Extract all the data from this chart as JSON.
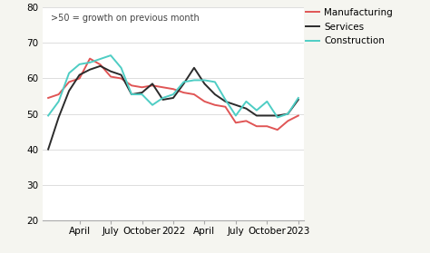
{
  "annotation": ">50 = growth on previous month",
  "ylim": [
    20,
    80
  ],
  "yticks": [
    20,
    30,
    40,
    50,
    60,
    70,
    80
  ],
  "xtick_labels": [
    "April",
    "July",
    "October",
    "2022",
    "April",
    "July",
    "October",
    "2023"
  ],
  "xtick_positions": [
    3,
    6,
    9,
    12,
    15,
    18,
    21,
    24
  ],
  "manufacturing": [
    54.5,
    55.5,
    59.0,
    60.0,
    65.6,
    63.9,
    60.5,
    60.0,
    58.0,
    57.5,
    58.0,
    57.5,
    57.0,
    56.0,
    55.5,
    53.5,
    52.5,
    52.0,
    47.5,
    48.0,
    46.5,
    46.5,
    45.5,
    48.0,
    49.5
  ],
  "services": [
    40.0,
    49.0,
    56.5,
    61.0,
    62.5,
    63.5,
    62.0,
    61.0,
    55.5,
    56.0,
    58.5,
    54.0,
    54.5,
    58.5,
    63.0,
    58.5,
    55.5,
    53.5,
    52.5,
    51.5,
    49.5,
    49.5,
    49.5,
    50.0,
    54.0
  ],
  "construction": [
    49.5,
    53.5,
    61.5,
    64.0,
    64.5,
    65.5,
    66.5,
    63.0,
    55.5,
    55.5,
    52.5,
    54.5,
    55.5,
    59.0,
    59.5,
    59.5,
    59.0,
    54.0,
    49.5,
    53.5,
    51.0,
    53.5,
    49.0,
    50.0,
    54.5
  ],
  "color_manufacturing": "#e05555",
  "color_services": "#2b2b2b",
  "color_construction": "#4ecdc4",
  "legend_labels": [
    "Manufacturing",
    "Services",
    "Construction"
  ],
  "plot_bg": "#ffffff",
  "fig_bg": "#f5f5f0",
  "grid_color": "#dddddd",
  "linewidth": 1.4,
  "annotation_fontsize": 7.0,
  "tick_fontsize": 7.5,
  "legend_fontsize": 7.5
}
